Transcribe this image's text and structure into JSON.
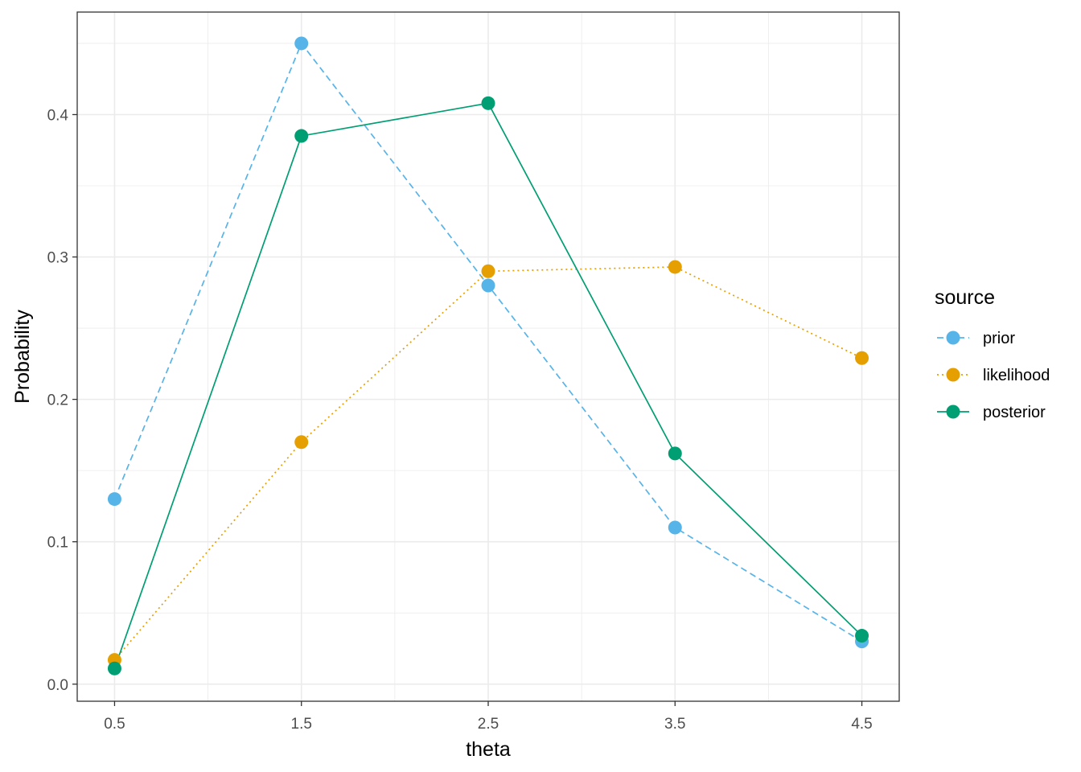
{
  "chart_data": {
    "type": "line",
    "xlabel": "theta",
    "ylabel": "Probability",
    "x": [
      0.5,
      1.5,
      2.5,
      3.5,
      4.5
    ],
    "xlim": [
      0.3,
      4.7
    ],
    "ylim": [
      -0.012,
      0.472
    ],
    "x_ticks": [
      "0.5",
      "1.5",
      "2.5",
      "3.5",
      "4.5"
    ],
    "y_ticks": [
      "0.0",
      "0.1",
      "0.2",
      "0.3",
      "0.4"
    ],
    "grid": true,
    "legend": {
      "title": "source",
      "position": "right"
    },
    "series": [
      {
        "name": "prior",
        "color": "#56B4E9",
        "line_style": "dashed",
        "values": [
          0.13,
          0.45,
          0.28,
          0.11,
          0.03
        ]
      },
      {
        "name": "likelihood",
        "color": "#E69F00",
        "line_style": "dotted",
        "values": [
          0.017,
          0.17,
          0.29,
          0.293,
          0.229
        ]
      },
      {
        "name": "posterior",
        "color": "#009E73",
        "line_style": "solid",
        "values": [
          0.011,
          0.385,
          0.408,
          0.162,
          0.034
        ]
      }
    ]
  }
}
